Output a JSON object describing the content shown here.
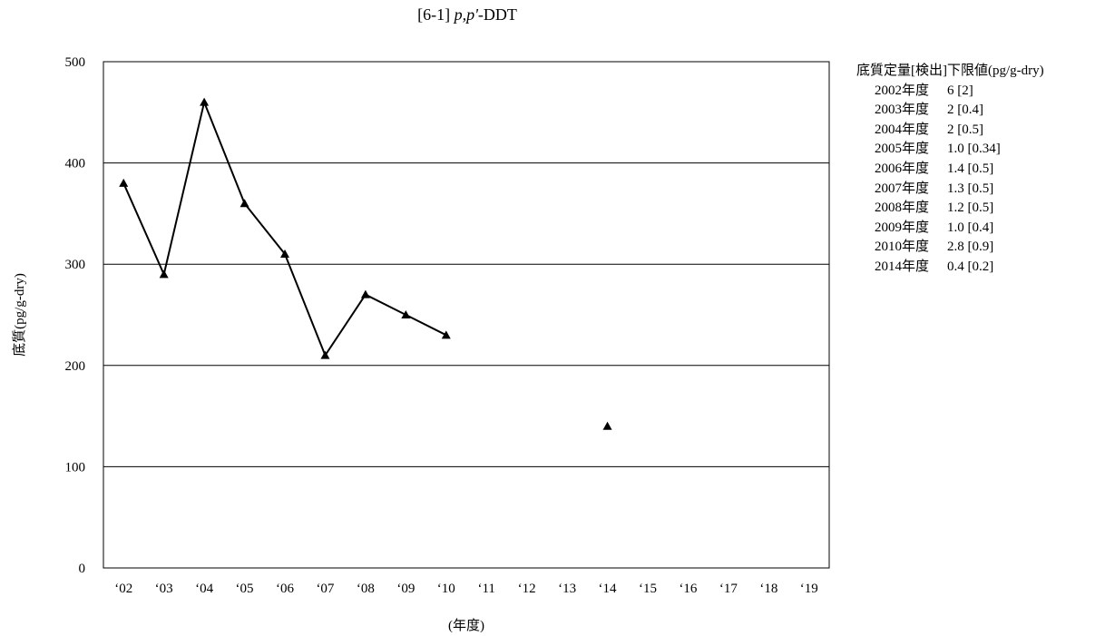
{
  "chart_data": {
    "type": "line",
    "title_prefix": "[6-1] ",
    "title_italic": "p,p'",
    "title_suffix": "-DDT",
    "xlabel": "(年度)",
    "ylabel": "底質(pg/g-dry)",
    "ylim": [
      0,
      500
    ],
    "yticks": [
      "0",
      "100",
      "200",
      "300",
      "400",
      "500"
    ],
    "categories": [
      "‘02",
      "‘03",
      "‘04",
      "‘05",
      "‘06",
      "‘07",
      "‘08",
      "‘09",
      "‘10",
      "‘11",
      "‘12",
      "‘13",
      "‘14",
      "‘15",
      "‘16",
      "‘17",
      "‘18",
      "‘19"
    ],
    "series": [
      {
        "values": [
          380,
          290,
          460,
          360,
          310,
          210,
          270,
          250,
          230,
          null,
          null,
          null,
          140,
          null,
          null,
          null,
          null,
          null
        ]
      }
    ],
    "grid": "horizontal",
    "legend": {
      "position": "right",
      "heading": "底質定量[検出]下限値(pg/g-dry)",
      "rows": [
        {
          "year": "2002年度",
          "value": "6 [2]"
        },
        {
          "year": "2003年度",
          "value": "2 [0.4]"
        },
        {
          "year": "2004年度",
          "value": "2 [0.5]"
        },
        {
          "year": "2005年度",
          "value": "1.0 [0.34]"
        },
        {
          "year": "2006年度",
          "value": "1.4 [0.5]"
        },
        {
          "year": "2007年度",
          "value": "1.3 [0.5]"
        },
        {
          "year": "2008年度",
          "value": "1.2 [0.5]"
        },
        {
          "year": "2009年度",
          "value": "1.0 [0.4]"
        },
        {
          "year": "2010年度",
          "value": "2.8 [0.9]"
        },
        {
          "year": "2014年度",
          "value": "0.4 [0.2]"
        }
      ]
    },
    "colors": {
      "line": "#000000",
      "marker": "#000000",
      "grid": "#000000"
    }
  }
}
